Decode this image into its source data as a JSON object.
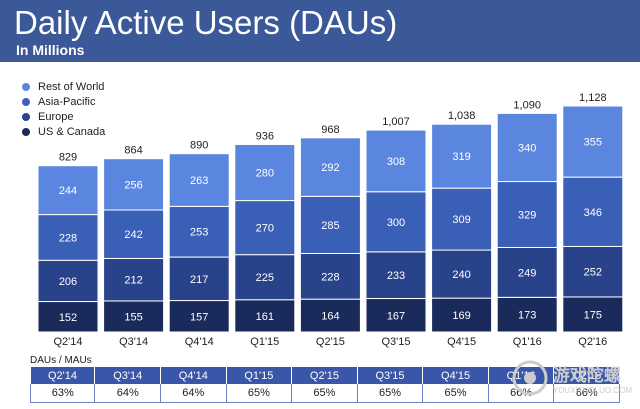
{
  "header": {
    "title": "Daily Active Users (DAUs)",
    "subtitle": "In Millions"
  },
  "colors": {
    "header_bg": "#3b5998",
    "rest_of_world": "#5b86df",
    "asia_pacific": "#3a5fb6",
    "europe": "#29438a",
    "us_canada": "#1a2a5a",
    "table_header": "#3a56a8"
  },
  "chart_data": {
    "type": "bar",
    "stacked": true,
    "categories": [
      "Q2'14",
      "Q3'14",
      "Q4'14",
      "Q1'15",
      "Q2'15",
      "Q3'15",
      "Q4'15",
      "Q1'16",
      "Q2'16"
    ],
    "series": [
      {
        "name": "US & Canada",
        "values": [
          152,
          155,
          157,
          161,
          164,
          167,
          169,
          173,
          175
        ]
      },
      {
        "name": "Europe",
        "values": [
          206,
          212,
          217,
          225,
          228,
          233,
          240,
          249,
          252
        ]
      },
      {
        "name": "Asia-Pacific",
        "values": [
          228,
          242,
          253,
          270,
          285,
          300,
          309,
          329,
          346
        ]
      },
      {
        "name": "Rest of World",
        "values": [
          244,
          256,
          263,
          280,
          292,
          308,
          319,
          340,
          355
        ]
      }
    ],
    "totals": [
      "829",
      "864",
      "890",
      "936",
      "968",
      "1,007",
      "1,038",
      "1,090",
      "1,128"
    ],
    "ylim": [
      0,
      1128
    ],
    "legend": {
      "placement": "top-left",
      "entries": [
        "Rest of World",
        "Asia-Pacific",
        "Europe",
        "US & Canada"
      ]
    },
    "grid": false
  },
  "ratio_table": {
    "label": "DAUs / MAUs",
    "quarters": [
      "Q2'14",
      "Q3'14",
      "Q4'14",
      "Q1'15",
      "Q2'15",
      "Q3'15",
      "Q4'15",
      "Q1'16",
      "Q2'16"
    ],
    "values": [
      "63%",
      "64%",
      "64%",
      "65%",
      "65%",
      "65%",
      "65%",
      "66%",
      "66%"
    ]
  },
  "watermark": {
    "main": "游戏陀螺",
    "sub": "YOUXITUOLUO.COM"
  }
}
